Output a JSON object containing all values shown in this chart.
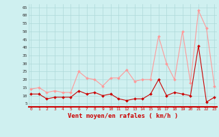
{
  "hours": [
    0,
    1,
    2,
    3,
    4,
    5,
    6,
    7,
    8,
    9,
    10,
    11,
    12,
    13,
    14,
    15,
    16,
    17,
    18,
    19,
    20,
    21,
    22,
    23
  ],
  "moyen": [
    11,
    11,
    8,
    9,
    9,
    9,
    13,
    11,
    12,
    10,
    11,
    8,
    7,
    8,
    8,
    11,
    20,
    10,
    12,
    11,
    10,
    41,
    6,
    9
  ],
  "rafales": [
    14,
    15,
    12,
    13,
    12,
    12,
    25,
    21,
    20,
    16,
    21,
    21,
    26,
    19,
    20,
    20,
    47,
    30,
    20,
    50,
    18,
    63,
    52,
    16
  ],
  "bg_color": "#cff0f0",
  "grid_color": "#add8d8",
  "line_moyen_color": "#cc0000",
  "line_rafales_color": "#ff9999",
  "xlabel": "Vent moyen/en rafales ( km/h )",
  "xlabel_color": "#cc0000",
  "yticks": [
    5,
    10,
    15,
    20,
    25,
    30,
    35,
    40,
    45,
    50,
    55,
    60,
    65
  ],
  "ylim": [
    3,
    67
  ],
  "xlim": [
    -0.3,
    23.3
  ]
}
